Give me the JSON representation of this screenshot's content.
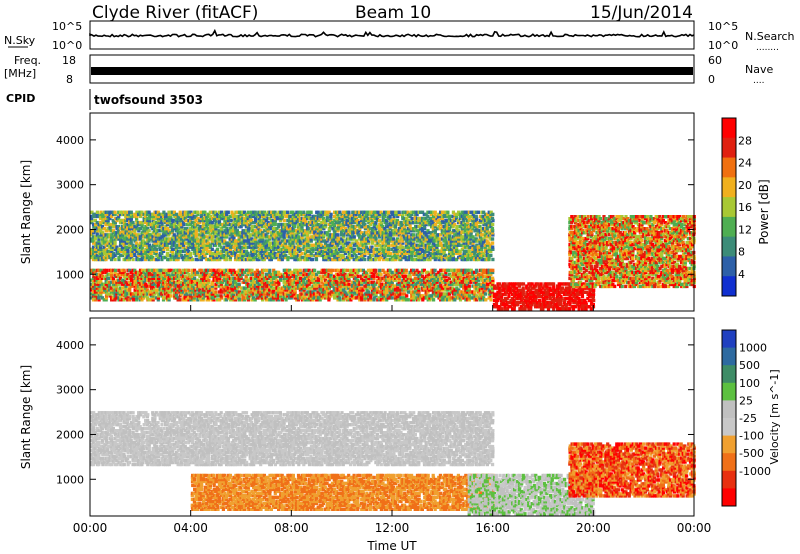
{
  "header": {
    "station": "Clyde River (fitACF)",
    "beam": "Beam 10",
    "date": "15/Jun/2014"
  },
  "nsky_panel": {
    "left_label": "N.Sky",
    "right_label": "N.Search",
    "right_label_dots": "........",
    "left_ticks": [
      "10^5",
      "10^0"
    ],
    "right_ticks": [
      "10^5",
      "10^0"
    ]
  },
  "freq_panel": {
    "left_label_1": "Freq.",
    "left_label_2": "[MHz]",
    "right_label": "Nave",
    "right_label_dots": "....",
    "left_ticks": [
      "18",
      "8"
    ],
    "right_ticks": [
      "60",
      "0"
    ]
  },
  "cpid": {
    "label": "CPID",
    "value": "twofsound 3503"
  },
  "x_axis": {
    "label": "Time UT",
    "ticks": [
      "00:00",
      "04:00",
      "08:00",
      "12:00",
      "16:00",
      "20:00",
      "00:00"
    ]
  },
  "chart_data": [
    {
      "type": "heatmap",
      "title": "",
      "xlabel": "Time UT",
      "ylabel": "Slant Range [km]",
      "x": [
        "00:00",
        "04:00",
        "08:00",
        "12:00",
        "16:00",
        "20:00",
        "00:00"
      ],
      "ylim": [
        180,
        4600
      ],
      "y_ticks": [
        1000,
        2000,
        3000,
        4000
      ],
      "colorbar": {
        "label": "Power [dB]",
        "range": [
          0,
          32
        ],
        "ticks": [
          4,
          8,
          12,
          16,
          20,
          24,
          28
        ]
      },
      "regions": [
        {
          "t_start": 0,
          "t_end": 16,
          "range_start": 1300,
          "range_end": 2400,
          "level": "mixed 8-20 dB"
        },
        {
          "t_start": 0,
          "t_end": 16,
          "range_start": 400,
          "range_end": 1100,
          "level": "mixed 8-28 dB"
        },
        {
          "t_start": 16,
          "t_end": 20,
          "range_start": 200,
          "range_end": 800,
          "level": "28+ dB"
        },
        {
          "t_start": 19,
          "t_end": 24,
          "range_start": 700,
          "range_end": 2300,
          "level": "mixed 12-28 dB"
        }
      ]
    },
    {
      "type": "heatmap",
      "title": "",
      "xlabel": "Time UT",
      "ylabel": "Slant Range [km]",
      "x": [
        "00:00",
        "04:00",
        "08:00",
        "12:00",
        "16:00",
        "20:00",
        "00:00"
      ],
      "ylim": [
        180,
        4600
      ],
      "y_ticks": [
        1000,
        2000,
        3000,
        4000
      ],
      "colorbar": {
        "label": "Velocity [m s^-1]",
        "ticks": [
          1000,
          500,
          100,
          25,
          -25,
          -100,
          -500,
          -1000
        ]
      },
      "regions": [
        {
          "t_start": 0,
          "t_end": 16,
          "range_start": 1300,
          "range_end": 2500,
          "level": "ground scatter (grey)"
        },
        {
          "t_start": 4,
          "t_end": 16,
          "range_start": 300,
          "range_end": 1100,
          "level": "-100 to -500 m/s"
        },
        {
          "t_start": 15,
          "t_end": 20,
          "range_start": 200,
          "range_end": 1100,
          "level": "ground scatter (grey)"
        },
        {
          "t_start": 19,
          "t_end": 24,
          "range_start": 600,
          "range_end": 1800,
          "level": "-100 to -1000 m/s"
        }
      ]
    }
  ],
  "colors": {
    "power_scale": [
      "#1030d0",
      "#2d60a8",
      "#3c8c78",
      "#4fae52",
      "#a8c834",
      "#f0b01e",
      "#f07010",
      "#e02010",
      "#ff0000"
    ],
    "velocity_scale": [
      "#2040c0",
      "#2e6aa0",
      "#3e8c66",
      "#5cc040",
      "#c0c0c0",
      "#c8c8c8",
      "#f0a030",
      "#f07018",
      "#e83010",
      "#ff0000"
    ]
  }
}
